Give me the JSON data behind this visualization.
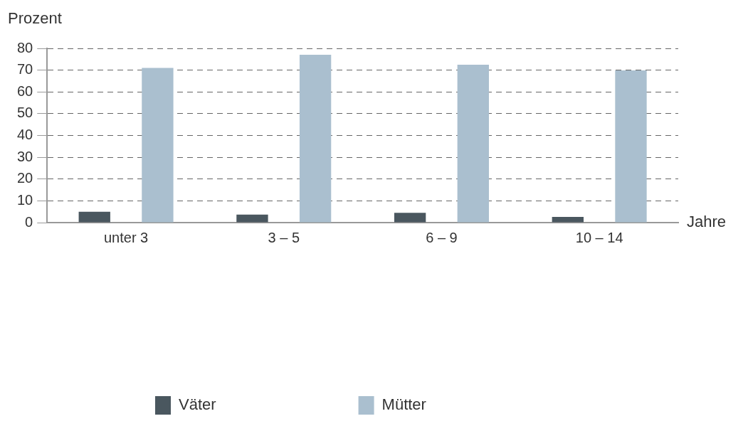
{
  "chart_data": {
    "type": "bar",
    "xlabel": "Jahre",
    "ylabel": "Prozent",
    "categories": [
      "unter 3",
      "3 – 5",
      "6 – 9",
      "10 – 14"
    ],
    "series": [
      {
        "name": "Väter",
        "color": "#4a575f",
        "values": [
          5.0,
          3.7,
          4.5,
          2.6
        ]
      },
      {
        "name": "Mütter",
        "color": "#aabfcf",
        "values": [
          71.0,
          77.1,
          72.5,
          69.9
        ]
      }
    ],
    "ylim": [
      0,
      80
    ],
    "yticks": [
      0,
      10,
      20,
      30,
      40,
      50,
      60,
      70,
      80
    ],
    "grid": "y",
    "legend": "bottom left"
  }
}
